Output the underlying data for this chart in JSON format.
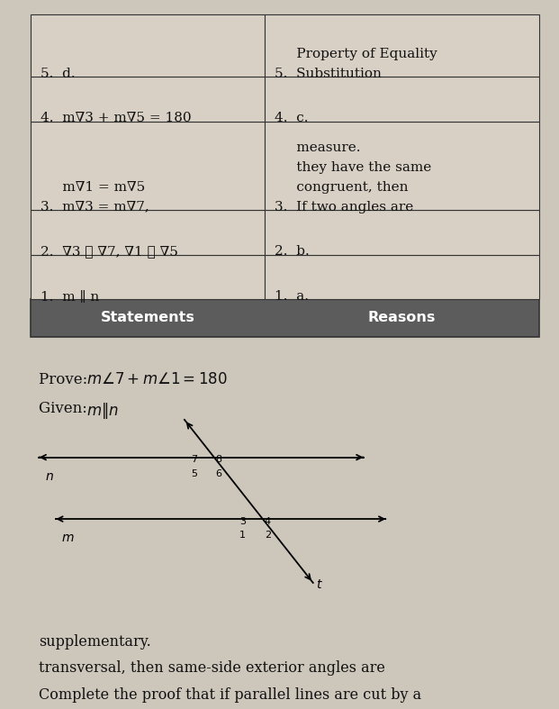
{
  "bg_color": "#cdc6bb",
  "title_lines": [
    "Complete the proof that if parallel lines are cut by a",
    "transversal, then same-side exterior angles are",
    "supplementary."
  ],
  "given_text": "Given: ",
  "given_math": "m ∥ n",
  "prove_text": "Prove: ",
  "prove_math": "m∇7 + m∇1 = 180",
  "header_bg": "#5c5c5c",
  "header_text_color": "#ffffff",
  "col1_header": "Statements",
  "col2_header": "Reasons",
  "rows": [
    {
      "stmt": "1.  m ∥ n",
      "reason": "1.  a."
    },
    {
      "stmt": "2.  ∇3 ≅ ∇7, ∇1 ≅ ∇5",
      "reason": "2.  b."
    },
    {
      "stmt": "3.  m∇3 = m∇7,\n     m∇1 = m∇5",
      "reason": "3.  If two angles are\n     congruent, then\n     they have the same\n     measure."
    },
    {
      "stmt": "4.  m∇3 + m∇5 = 180",
      "reason": "4.  c."
    },
    {
      "stmt": "5.  d.",
      "reason": "5.  Substitution\n     Property of Equality"
    }
  ],
  "font_size_title": 11.5,
  "font_size_body": 11,
  "font_size_header": 11.5,
  "font_size_given": 12,
  "font_size_diagram": 9
}
